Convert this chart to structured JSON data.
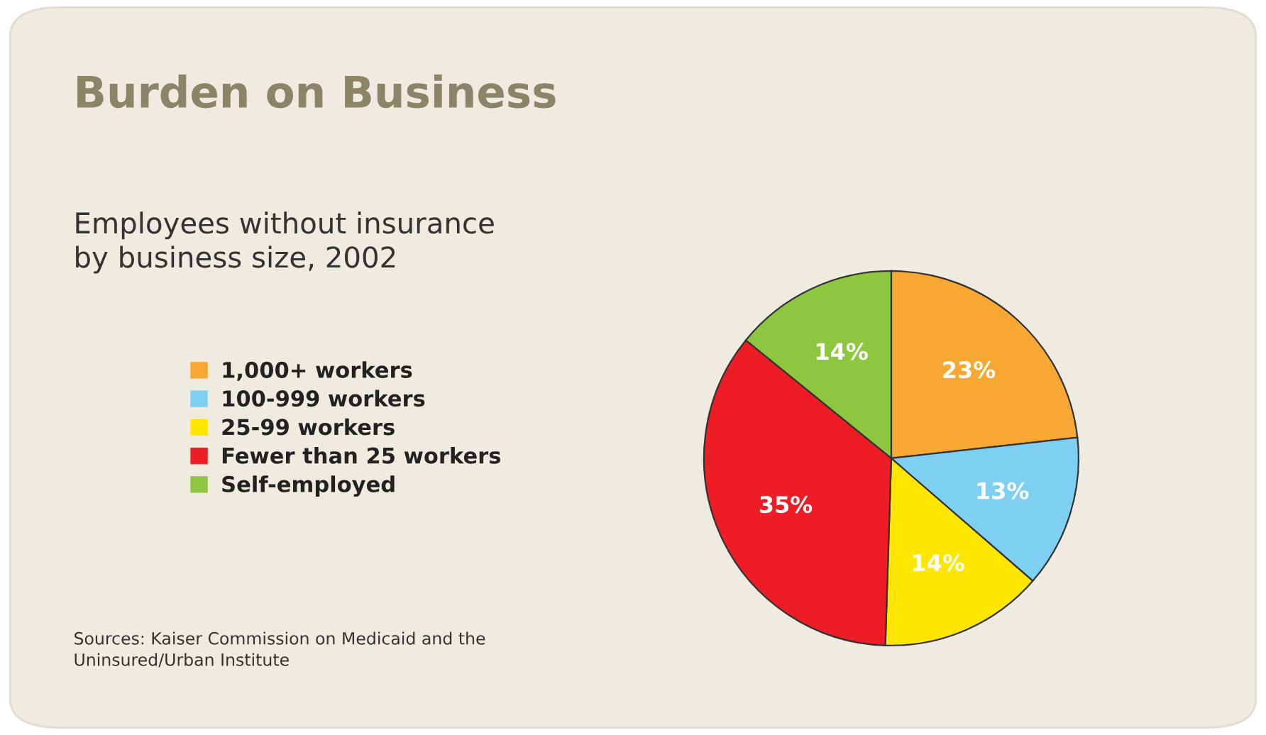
{
  "chart_data": {
    "type": "pie",
    "title": "Burden on Business",
    "subtitle": "Employees without insurance\nby business size, 2002",
    "categories": [
      "1,000+ workers",
      "100-999 workers",
      "25-99 workers",
      "Fewer than 25 workers",
      "Self-employed"
    ],
    "values": [
      23,
      13,
      14,
      35,
      14
    ],
    "value_labels": [
      "23%",
      "13%",
      "14%",
      "35%",
      "14%"
    ],
    "colors": [
      "#f7a833",
      "#7dd0f2",
      "#ffe600",
      "#ee1c25",
      "#8dc63f"
    ],
    "legend": "left",
    "annotations": [
      "Sources: Kaiser Commission on Medicaid and the\nUninsured/Urban Institute"
    ]
  }
}
